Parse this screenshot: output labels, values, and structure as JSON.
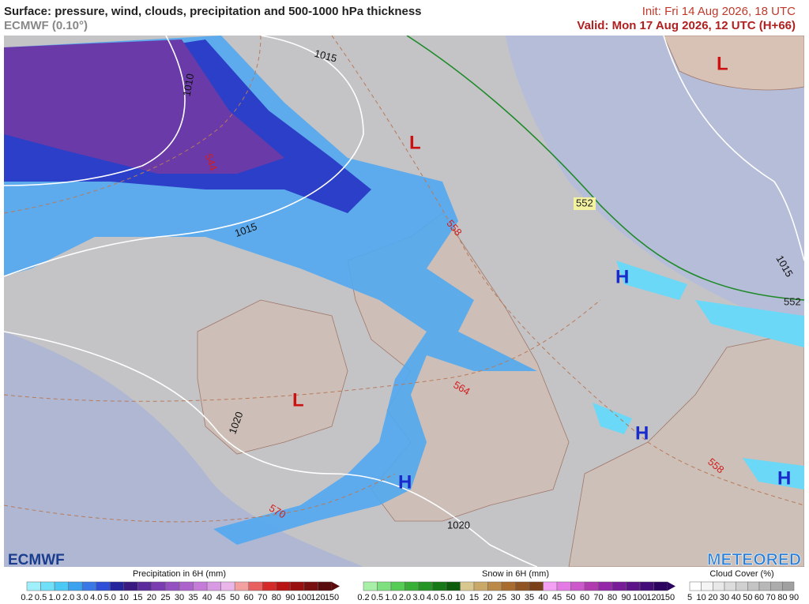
{
  "header": {
    "title": "Surface: pressure, wind, clouds, precipitation and 500-1000 hPa thickness",
    "subtitle": "ECMWF (0.10°)",
    "init": "Init: Fri 14 Aug 2026, 18 UTC",
    "valid": "Valid: Mon 17 Aug 2026, 12 UTC (H+66)"
  },
  "map": {
    "pressure_labels": [
      "1015",
      "1010",
      "1015",
      "1015",
      "1020",
      "1020"
    ],
    "thickness_labels": [
      "544",
      "558",
      "552",
      "552",
      "564",
      "570",
      "558"
    ],
    "systems": [
      "L",
      "L",
      "L",
      "H",
      "H",
      "H",
      "H"
    ]
  },
  "logos": {
    "left": "ECMWF",
    "right": "METEORED"
  },
  "legend": {
    "precipitation": {
      "title": "Precipitation in 6H (mm)",
      "labels": [
        "0.2",
        "0.5",
        "1.0",
        "2.0",
        "3.0",
        "4.0",
        "5.0",
        "10",
        "15",
        "20",
        "25",
        "30",
        "35",
        "40",
        "45",
        "50",
        "60",
        "70",
        "80",
        "90",
        "100",
        "120",
        "150"
      ],
      "colors": [
        "#9ff0fa",
        "#6fe0f8",
        "#4cc8f4",
        "#3aa2ee",
        "#3a78e6",
        "#2f4fd8",
        "#24249c",
        "#3a1a80",
        "#5b2a9c",
        "#7a3cb0",
        "#9450c0",
        "#ac64cc",
        "#c47cd8",
        "#d89ae2",
        "#eab6ea",
        "#f2a0a0",
        "#e86060",
        "#d42a2a",
        "#b81414",
        "#981010",
        "#781010",
        "#5a0c0c"
      ]
    },
    "snow": {
      "title": "Snow in 6H (mm)",
      "labels": [
        "0.2",
        "0.5",
        "1.0",
        "2.0",
        "3.0",
        "4.0",
        "5.0",
        "10",
        "15",
        "20",
        "25",
        "30",
        "35",
        "40",
        "45",
        "50",
        "60",
        "70",
        "80",
        "90",
        "100",
        "120",
        "150"
      ],
      "colors": [
        "#a8f0a8",
        "#7ee07e",
        "#56cc56",
        "#38b038",
        "#249424",
        "#167816",
        "#0c5c0c",
        "#d8c890",
        "#caa868",
        "#bc8a48",
        "#a86c30",
        "#905424",
        "#7a401a",
        "#f4a0f4",
        "#e47ae4",
        "#cc58cc",
        "#b03cb0",
        "#9428a8",
        "#781c98",
        "#5c1488",
        "#440c78",
        "#2c0460"
      ]
    },
    "cloud": {
      "title": "Cloud Cover (%)",
      "labels": [
        "5",
        "10",
        "20",
        "30",
        "40",
        "50",
        "60",
        "70",
        "80",
        "90"
      ],
      "colors": [
        "#ffffff",
        "#f4f4f4",
        "#e8e8e8",
        "#dcdcdc",
        "#d0d0d0",
        "#c4c4c4",
        "#b8b8b8",
        "#acacac",
        "#a0a0a0"
      ]
    }
  }
}
